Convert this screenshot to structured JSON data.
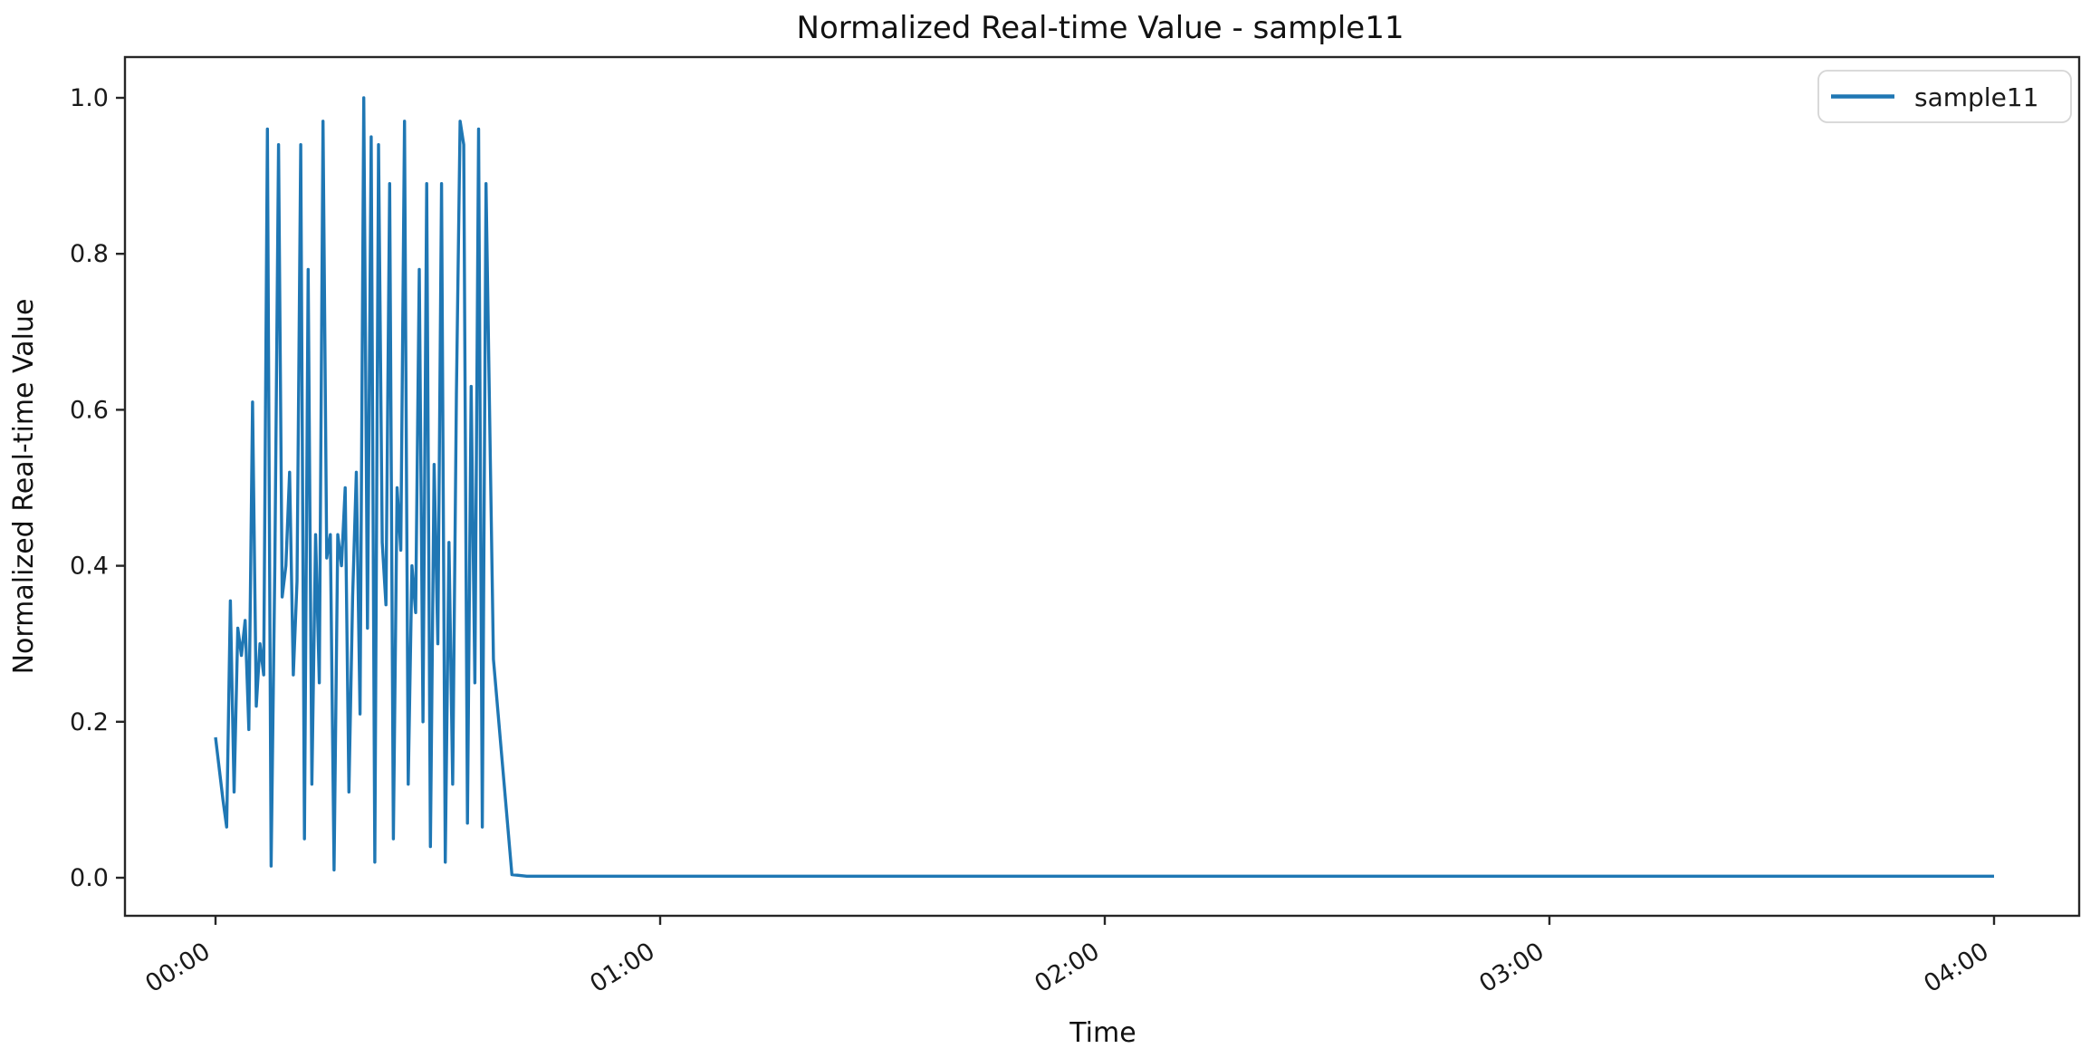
{
  "chart_data": {
    "type": "line",
    "title": "Normalized Real-time Value - sample11",
    "xlabel": "Time",
    "ylabel": "Normalized Real-time Value",
    "legend": {
      "position": "upper right",
      "entries": [
        "sample11"
      ]
    },
    "grid": false,
    "ylim": [
      -0.05,
      1.05
    ],
    "xlim_hours": [
      -0.2,
      4.19
    ],
    "x_tick_labels": [
      "00:00",
      "01:00",
      "02:00",
      "03:00",
      "04:00"
    ],
    "x_tick_hours": [
      0,
      1,
      2,
      3,
      4
    ],
    "y_tick_labels": [
      "0.0",
      "0.2",
      "0.4",
      "0.6",
      "0.8",
      "1.0"
    ],
    "y_tick_values": [
      0.0,
      0.2,
      0.4,
      0.6,
      0.8,
      1.0
    ],
    "line_color": "#1f77b4",
    "series": [
      {
        "name": "sample11",
        "color": "#1f77b4",
        "x_unit": "minutes",
        "points": [
          [
            0,
            0.18
          ],
          [
            0.5,
            0.14
          ],
          [
            1,
            0.1
          ],
          [
            1.5,
            0.065
          ],
          [
            2,
            0.355
          ],
          [
            2.5,
            0.11
          ],
          [
            3,
            0.32
          ],
          [
            3.5,
            0.285
          ],
          [
            4,
            0.33
          ],
          [
            4.5,
            0.19
          ],
          [
            5,
            0.61
          ],
          [
            5.5,
            0.22
          ],
          [
            6,
            0.3
          ],
          [
            6.5,
            0.26
          ],
          [
            7,
            0.96
          ],
          [
            7.5,
            0.015
          ],
          [
            8,
            0.4
          ],
          [
            8.5,
            0.94
          ],
          [
            9,
            0.36
          ],
          [
            9.5,
            0.4
          ],
          [
            10,
            0.52
          ],
          [
            10.5,
            0.26
          ],
          [
            11,
            0.38
          ],
          [
            11.5,
            0.94
          ],
          [
            12,
            0.05
          ],
          [
            12.5,
            0.78
          ],
          [
            13,
            0.12
          ],
          [
            13.5,
            0.44
          ],
          [
            14,
            0.25
          ],
          [
            14.5,
            0.97
          ],
          [
            15,
            0.41
          ],
          [
            15.5,
            0.44
          ],
          [
            16,
            0.01
          ],
          [
            16.5,
            0.44
          ],
          [
            17,
            0.4
          ],
          [
            17.5,
            0.5
          ],
          [
            18,
            0.11
          ],
          [
            18.5,
            0.36
          ],
          [
            19,
            0.52
          ],
          [
            19.5,
            0.21
          ],
          [
            20,
            1.0
          ],
          [
            20.5,
            0.32
          ],
          [
            21,
            0.95
          ],
          [
            21.5,
            0.02
          ],
          [
            22,
            0.94
          ],
          [
            22.5,
            0.43
          ],
          [
            23,
            0.35
          ],
          [
            23.5,
            0.89
          ],
          [
            24,
            0.05
          ],
          [
            24.5,
            0.5
          ],
          [
            25,
            0.42
          ],
          [
            25.5,
            0.97
          ],
          [
            26,
            0.12
          ],
          [
            26.5,
            0.4
          ],
          [
            27,
            0.34
          ],
          [
            27.5,
            0.78
          ],
          [
            28,
            0.2
          ],
          [
            28.5,
            0.89
          ],
          [
            29,
            0.04
          ],
          [
            29.5,
            0.53
          ],
          [
            30,
            0.3
          ],
          [
            30.5,
            0.89
          ],
          [
            31,
            0.02
          ],
          [
            31.5,
            0.43
          ],
          [
            32,
            0.12
          ],
          [
            32.5,
            0.62
          ],
          [
            33,
            0.97
          ],
          [
            33.5,
            0.94
          ],
          [
            34,
            0.07
          ],
          [
            34.5,
            0.63
          ],
          [
            35,
            0.25
          ],
          [
            35.5,
            0.96
          ],
          [
            36,
            0.065
          ],
          [
            36.5,
            0.89
          ],
          [
            37.5,
            0.28
          ],
          [
            40,
            0.004
          ],
          [
            42,
            0.002
          ],
          [
            60,
            0.002
          ],
          [
            80,
            0.002
          ],
          [
            100,
            0.002
          ],
          [
            120,
            0.002
          ],
          [
            140,
            0.002
          ],
          [
            160,
            0.002
          ],
          [
            180,
            0.002
          ],
          [
            200,
            0.002
          ],
          [
            220,
            0.002
          ],
          [
            240,
            0.002
          ]
        ]
      }
    ]
  }
}
